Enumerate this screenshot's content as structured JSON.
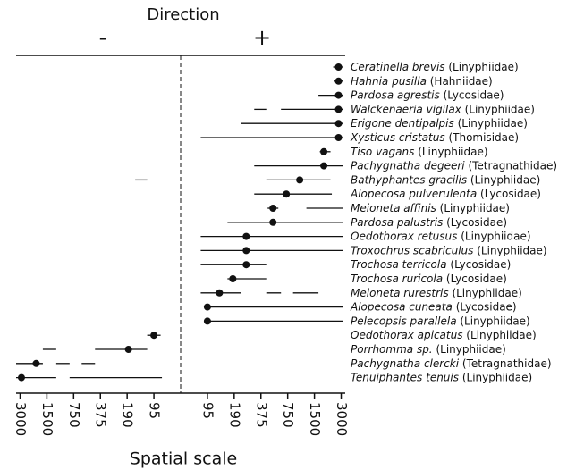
{
  "chart_data": {
    "type": "forest",
    "title": "Direction",
    "left_label": "-",
    "right_label": "+",
    "xlabel": "Spatial scale",
    "xlim": [
      -6.15,
      6.15
    ],
    "xticks": [
      {
        "value": -6,
        "label": "3000"
      },
      {
        "value": -5,
        "label": "1500"
      },
      {
        "value": -4,
        "label": "750"
      },
      {
        "value": -3,
        "label": "375"
      },
      {
        "value": -2,
        "label": "190"
      },
      {
        "value": -1,
        "label": "95"
      },
      {
        "value": 1,
        "label": "95"
      },
      {
        "value": 2,
        "label": "190"
      },
      {
        "value": 3,
        "label": "375"
      },
      {
        "value": 4,
        "label": "750"
      },
      {
        "value": 5,
        "label": "1500"
      },
      {
        "value": 6,
        "label": "3000"
      }
    ],
    "color": "#111111",
    "rows": [
      {
        "name": "Ceratinella brevis",
        "family": "(Linyphiidae)",
        "value": 5.9,
        "intervals": [
          [
            5.7,
            6.05
          ]
        ]
      },
      {
        "name": "Hahnia pusilla",
        "family": "(Hahniidae)",
        "value": 5.9,
        "intervals": [
          [
            5.75,
            6.05
          ]
        ]
      },
      {
        "name": "Pardosa agrestis",
        "family": "(Lycosidae)",
        "value": 5.9,
        "intervals": [
          [
            5.15,
            6.05
          ]
        ]
      },
      {
        "name": "Walckenaeria vigilax",
        "family": "(Linyphiidae)",
        "value": 5.9,
        "intervals": [
          [
            2.75,
            3.2
          ],
          [
            3.75,
            6.05
          ]
        ]
      },
      {
        "name": "Erigone dentipalpis",
        "family": "(Linyphiidae)",
        "value": 5.9,
        "intervals": [
          [
            2.25,
            6.05
          ]
        ]
      },
      {
        "name": "Xysticus cristatus",
        "family": "(Thomisidae)",
        "value": 5.9,
        "intervals": [
          [
            0.75,
            6.05
          ]
        ]
      },
      {
        "name": "Tiso vagans",
        "family": "(Linyphiidae)",
        "value": 5.35,
        "intervals": [
          [
            5.2,
            5.6
          ]
        ]
      },
      {
        "name": "Pachygnatha degeeri",
        "family": "(Tetragnathidae)",
        "value": 5.35,
        "intervals": [
          [
            2.75,
            6.05
          ]
        ]
      },
      {
        "name": "Bathyphantes gracilis",
        "family": "(Linyphiidae)",
        "value": 4.45,
        "intervals": [
          [
            -1.7,
            -1.25
          ],
          [
            3.2,
            5.6
          ]
        ]
      },
      {
        "name": "Alopecosa pulverulenta",
        "family": "(Lycosidae)",
        "value": 3.95,
        "intervals": [
          [
            2.75,
            5.65
          ]
        ]
      },
      {
        "name": "Meioneta affinis",
        "family": "(Linyphiidae)",
        "value": 3.45,
        "intervals": [
          [
            3.25,
            3.65
          ],
          [
            4.7,
            6.05
          ]
        ]
      },
      {
        "name": "Pardosa palustris",
        "family": "(Lycosidae)",
        "value": 3.45,
        "intervals": [
          [
            1.75,
            6.05
          ]
        ]
      },
      {
        "name": "Oedothorax retusus",
        "family": "(Linyphiidae)",
        "value": 2.45,
        "intervals": [
          [
            0.75,
            6.05
          ]
        ]
      },
      {
        "name": "Troxochrus scabriculus",
        "family": "(Linyphiidae)",
        "value": 2.45,
        "intervals": [
          [
            0.75,
            6.05
          ]
        ]
      },
      {
        "name": "Trochosa terricola",
        "family": "(Lycosidae)",
        "value": 2.45,
        "intervals": [
          [
            0.75,
            3.2
          ]
        ]
      },
      {
        "name": "Trochosa ruricola",
        "family": "(Lycosidae)",
        "value": 1.95,
        "intervals": [
          [
            1.75,
            3.2
          ]
        ]
      },
      {
        "name": "Meioneta rurestris",
        "family": "(Linyphiidae)",
        "value": 1.45,
        "intervals": [
          [
            0.75,
            2.25
          ],
          [
            3.2,
            3.75
          ],
          [
            4.2,
            5.15
          ]
        ]
      },
      {
        "name": "Alopecosa cuneata",
        "family": "(Lycosidae)",
        "value": 1.0,
        "intervals": [
          [
            0.9,
            6.05
          ]
        ]
      },
      {
        "name": "Pelecopsis parallela",
        "family": "(Linyphiidae)",
        "value": 1.0,
        "intervals": [
          [
            0.9,
            6.05
          ]
        ]
      },
      {
        "name": "Oedothorax apicatus",
        "family": "(Linyphiidae)",
        "value": -1.0,
        "intervals": [
          [
            -1.25,
            -0.75
          ]
        ]
      },
      {
        "name": "Porrhomma sp.",
        "family": "(Linyphiidae)",
        "value": -1.95,
        "intervals": [
          [
            -5.15,
            -4.65
          ],
          [
            -3.2,
            -1.25
          ]
        ]
      },
      {
        "name": "Pachygnatha clercki",
        "family": "(Tetragnathidae)",
        "value": -5.4,
        "intervals": [
          [
            -6.15,
            -5.15
          ],
          [
            -4.65,
            -4.15
          ],
          [
            -3.7,
            -3.2
          ]
        ]
      },
      {
        "name": "Tenuiphantes tenuis",
        "family": "(Linyphiidae)",
        "value": -5.95,
        "intervals": [
          [
            -6.15,
            -4.65
          ],
          [
            -4.15,
            -0.7
          ]
        ]
      }
    ]
  }
}
